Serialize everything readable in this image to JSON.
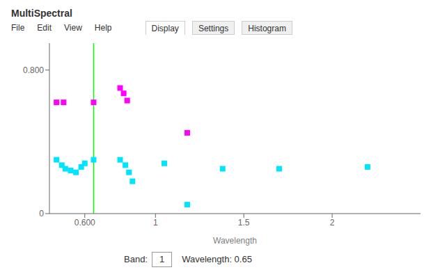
{
  "chart_data": {
    "type": "scatter",
    "title": "MultiSpectral",
    "xlabel": "Wavelength",
    "xlim": [
      0.4,
      2.5
    ],
    "xticks": [
      {
        "value": 0.6,
        "label": "0.600"
      },
      1,
      1.5,
      2
    ],
    "ylim": [
      0.0,
      0.95
    ],
    "yticks": [
      0,
      {
        "value": 0.8,
        "label": "0.800"
      }
    ],
    "grid": false,
    "series": [
      {
        "color": "#ff00ff",
        "marker": "square",
        "x": [
          0.44,
          0.48,
          0.65,
          0.8,
          0.82,
          0.84,
          1.18
        ],
        "values": [
          0.62,
          0.62,
          0.62,
          0.7,
          0.67,
          0.63,
          0.45
        ]
      },
      {
        "color": "#00e5ff",
        "marker": "square",
        "x": [
          0.44,
          0.47,
          0.49,
          0.52,
          0.55,
          0.58,
          0.6,
          0.65,
          0.8,
          0.83,
          0.85,
          0.87,
          1.05,
          1.18,
          1.38,
          1.7,
          2.2
        ],
        "values": [
          0.3,
          0.27,
          0.25,
          0.24,
          0.23,
          0.26,
          0.28,
          0.3,
          0.3,
          0.27,
          0.23,
          0.18,
          0.28,
          0.05,
          0.25,
          0.25,
          0.26
        ]
      }
    ],
    "annotations": [
      {
        "type": "vline",
        "x": 0.65,
        "color": "#00ff00"
      },
      {
        "type": "menu",
        "texts": [
          "File",
          "Edit",
          "View",
          "Help"
        ]
      },
      {
        "type": "tabs",
        "texts": [
          "Display",
          "Settings",
          "Histogram"
        ]
      },
      {
        "type": "status",
        "texts": [
          "Band:",
          "1",
          "Wavelength: 0.65"
        ]
      }
    ]
  }
}
